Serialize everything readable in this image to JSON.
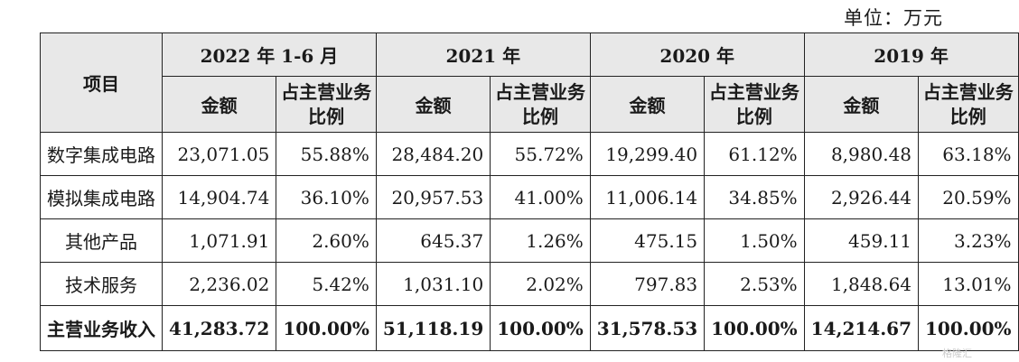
{
  "unit_label": "单位：万元",
  "header": {
    "item_label": "项目",
    "periods": [
      "2022 年 1-6 月",
      "2021 年",
      "2020 年",
      "2019 年"
    ],
    "amount_label": "金额",
    "ratio_label": "占主营业务比例"
  },
  "rows": [
    {
      "label": "数字集成电路",
      "cells": [
        "23,071.05",
        "55.88%",
        "28,484.20",
        "55.72%",
        "19,299.40",
        "61.12%",
        "8,980.48",
        "63.18%"
      ]
    },
    {
      "label": "模拟集成电路",
      "cells": [
        "14,904.74",
        "36.10%",
        "20,957.53",
        "41.00%",
        "11,006.14",
        "34.85%",
        "2,926.44",
        "20.59%"
      ]
    },
    {
      "label": "其他产品",
      "cells": [
        "1,071.91",
        "2.60%",
        "645.37",
        "1.26%",
        "475.15",
        "1.50%",
        "459.11",
        "3.23%"
      ]
    },
    {
      "label": "技术服务",
      "cells": [
        "2,236.02",
        "5.42%",
        "1,031.10",
        "2.02%",
        "797.83",
        "2.53%",
        "1,848.64",
        "13.01%"
      ]
    }
  ],
  "total": {
    "label": "主营业务收入",
    "cells": [
      "41,283.72",
      "100.00%",
      "51,118.19",
      "100.00%",
      "31,578.53",
      "100.00%",
      "14,214.67",
      "100.00%"
    ]
  },
  "watermark": "格隆汇"
}
